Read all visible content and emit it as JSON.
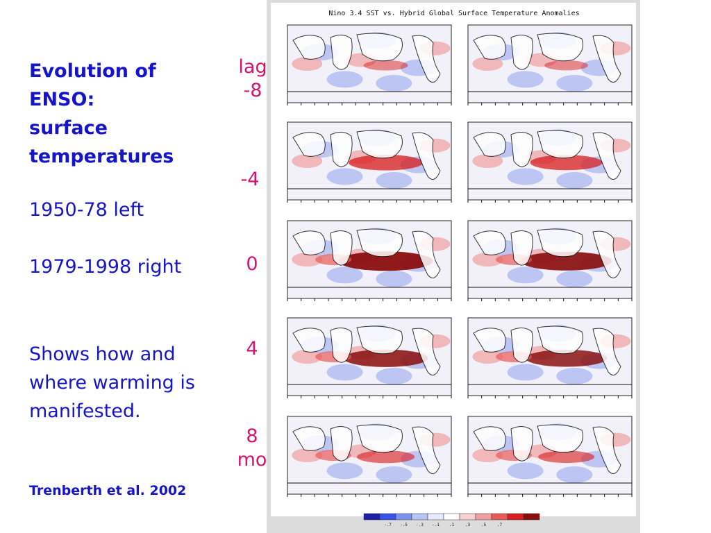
{
  "slide": {
    "title_lines": [
      "Evolution of",
      "ENSO:",
      "surface",
      "temperatures"
    ],
    "period_left": "1950-78 left",
    "period_right": "1979-1998 right",
    "note_lines": [
      "Shows how and",
      "where warming is",
      "manifested."
    ],
    "citation": "Trenberth et al. 2002",
    "lag_labels": [
      "lag\n-8",
      "-4",
      "0",
      "4",
      "8\nmo"
    ]
  },
  "figure": {
    "title": "Nino 3.4 SST vs. Hybrid Global Surface Temperature Anomalies",
    "colorbar_colors": [
      "#1f1fa8",
      "#3a52e6",
      "#7d92f0",
      "#b8c4f6",
      "#e6eafb",
      "#ffffff",
      "#f8d2d2",
      "#f0a0a0",
      "#e85a5a",
      "#d81e1e",
      "#8a0e0e"
    ],
    "colorbar_tick_labels": [
      "-.7",
      "-.5",
      "-.3",
      "-.1",
      ".1",
      ".3",
      ".5",
      ".7"
    ]
  }
}
